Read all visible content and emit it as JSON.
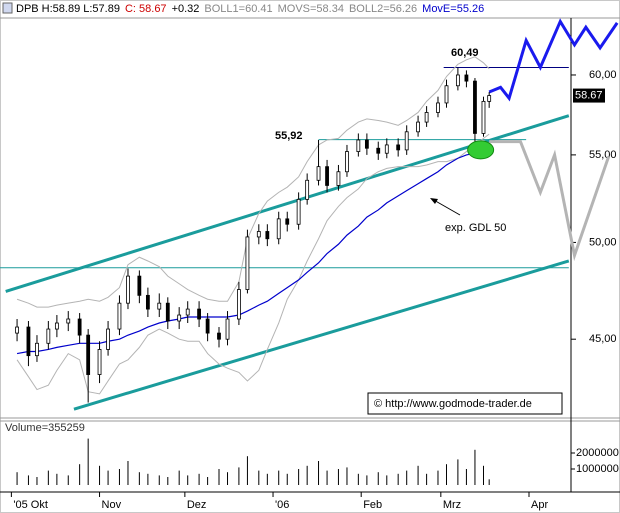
{
  "chart_data": [
    {
      "type": "candlestick",
      "header": [
        {
          "text": "DPB H:58.89 L:57.89",
          "color": "#000000"
        },
        {
          "text": "C: 58.67",
          "color": "#cc0000"
        },
        {
          "text": "+0.32",
          "color": "#000000"
        },
        {
          "text": "BOLL1=60.41",
          "color": "#888888"
        },
        {
          "text": "MOVS=58.34",
          "color": "#888888"
        },
        {
          "text": "BOLL2=56.26",
          "color": "#888888"
        },
        {
          "text": "MovE=55.26",
          "color": "#0000cc"
        }
      ],
      "x": [
        2,
        6,
        9,
        13,
        16,
        20,
        24,
        27,
        31,
        34,
        38,
        41,
        45,
        48,
        52,
        55,
        59,
        62,
        66,
        69,
        73,
        76,
        80,
        83,
        87,
        90,
        94,
        97,
        101,
        104,
        108,
        111,
        115,
        118,
        122,
        125,
        129,
        132,
        136,
        139,
        143,
        146,
        150,
        153,
        157,
        160,
        163,
        166,
        168
      ],
      "open": [
        45.3,
        45.6,
        44.2,
        44.8,
        45.5,
        45.8,
        46.0,
        45.2,
        43.3,
        44.5,
        45.5,
        46.8,
        48.2,
        47.2,
        46.5,
        46.8,
        45.9,
        46.2,
        46.5,
        46.0,
        45.3,
        45.0,
        46.0,
        47.5,
        50.3,
        50.6,
        50.2,
        51.3,
        51.0,
        52.4,
        53.5,
        54.3,
        53.2,
        54.0,
        55.2,
        55.9,
        55.4,
        55.1,
        55.6,
        55.3,
        56.4,
        57.0,
        57.6,
        58.2,
        59.3,
        60.0,
        59.6,
        56.3,
        58.3
      ],
      "high": [
        46.0,
        45.9,
        45.2,
        45.9,
        46.2,
        46.4,
        46.3,
        45.5,
        44.9,
        45.9,
        47.2,
        48.6,
        48.5,
        47.6,
        47.3,
        47.1,
        46.6,
        46.9,
        46.9,
        46.3,
        45.6,
        46.4,
        47.9,
        50.7,
        51.0,
        51.0,
        51.7,
        51.7,
        52.8,
        53.9,
        55.9,
        54.7,
        54.4,
        55.6,
        56.3,
        56.3,
        55.8,
        56.0,
        56.0,
        56.8,
        57.4,
        58.0,
        58.6,
        59.7,
        60.49,
        60.3,
        59.8,
        58.6,
        58.89
      ],
      "low": [
        44.9,
        43.7,
        43.9,
        44.5,
        45.1,
        45.4,
        44.8,
        42.0,
        42.9,
        44.2,
        45.2,
        46.5,
        46.8,
        46.1,
        46.1,
        45.5,
        45.5,
        45.8,
        45.6,
        44.9,
        44.6,
        44.7,
        45.7,
        47.3,
        49.9,
        49.8,
        49.9,
        50.6,
        50.7,
        52.1,
        53.2,
        52.8,
        52.9,
        53.7,
        54.9,
        55.0,
        54.7,
        54.8,
        54.9,
        55.0,
        56.1,
        56.7,
        57.3,
        57.9,
        59.0,
        59.2,
        55.8,
        56.1,
        57.89
      ],
      "close": [
        45.6,
        44.2,
        44.8,
        45.5,
        45.8,
        46.0,
        45.2,
        43.3,
        44.5,
        45.5,
        46.8,
        48.2,
        47.2,
        46.5,
        46.8,
        45.9,
        46.2,
        46.5,
        46.0,
        45.3,
        45.0,
        46.0,
        47.5,
        50.3,
        50.6,
        50.2,
        51.3,
        51.0,
        52.4,
        53.5,
        54.3,
        53.2,
        54.0,
        55.2,
        55.9,
        55.4,
        55.1,
        55.6,
        55.3,
        56.4,
        57.0,
        57.6,
        58.2,
        59.3,
        60.0,
        59.6,
        56.3,
        58.3,
        58.67
      ],
      "overlays": [
        {
          "color": "#b4b4b4",
          "values": [
            47.0,
            46.8,
            46.6,
            46.6,
            46.7,
            46.8,
            46.9,
            47.0,
            46.9,
            47.1,
            47.6,
            48.8,
            49.2,
            49.0,
            48.7,
            48.2,
            47.8,
            47.5,
            47.2,
            47.0,
            46.9,
            46.9,
            47.9,
            50.2,
            51.6,
            52.3,
            52.8,
            53.1,
            53.7,
            54.6,
            55.6,
            55.9,
            56.0,
            56.5,
            57.0,
            57.2,
            57.1,
            57.0,
            56.8,
            57.1,
            57.6,
            58.3,
            59.0,
            59.9,
            60.7,
            61.0,
            61.2,
            60.8,
            60.41
          ]
        },
        {
          "color": "#b4b4b4",
          "values": [
            44.0,
            43.2,
            42.6,
            42.8,
            43.5,
            44.3,
            44.0,
            42.5,
            42.4,
            43.0,
            43.8,
            44.0,
            44.6,
            45.2,
            45.5,
            45.3,
            45.0,
            44.9,
            44.9,
            44.3,
            43.8,
            43.6,
            43.4,
            43.0,
            43.5,
            44.5,
            45.8,
            47.0,
            48.0,
            49.0,
            50.2,
            51.2,
            52.0,
            52.5,
            53.0,
            53.6,
            54.0,
            54.2,
            54.3,
            54.3,
            54.3,
            54.4,
            54.6,
            54.6,
            54.8,
            55.2,
            55.6,
            56.0,
            56.26
          ]
        },
        {
          "color": "#0000cc",
          "values": [
            44.3,
            44.4,
            44.4,
            44.5,
            44.6,
            44.7,
            44.8,
            44.8,
            44.8,
            44.9,
            45.0,
            45.2,
            45.4,
            45.6,
            45.8,
            45.9,
            46.0,
            46.1,
            46.1,
            46.1,
            46.1,
            46.1,
            46.2,
            46.4,
            46.7,
            46.9,
            47.3,
            47.6,
            48.0,
            48.4,
            48.9,
            49.4,
            49.9,
            50.4,
            50.9,
            51.4,
            51.8,
            52.2,
            52.6,
            52.9,
            53.3,
            53.6,
            54.0,
            54.4,
            54.8,
            55.0,
            55.1,
            55.2,
            55.26
          ]
        }
      ],
      "lines": [
        {
          "color": "#1a9c9c",
          "width": 3,
          "x": [
            -2,
            196
          ],
          "values": [
            47.4,
            57.4
          ]
        },
        {
          "color": "#1a9c9c",
          "width": 3,
          "x": [
            22,
            196
          ],
          "values": [
            41.7,
            49.0
          ]
        },
        {
          "color": "#1a9c9c",
          "width": 1,
          "x": [
            -4,
            196
          ],
          "values": [
            48.64,
            48.64
          ]
        },
        {
          "color": "#1a9c9c",
          "width": 1,
          "x": [
            108,
            181
          ],
          "values": [
            55.92,
            55.92
          ]
        },
        {
          "color": "#000080",
          "width": 1,
          "x": [
            152,
            196
          ],
          "values": [
            60.49,
            60.49
          ]
        },
        {
          "color": "#1a1aee",
          "width": 3,
          "x": [
            168,
            172,
            175,
            181,
            186,
            193,
            198,
            202,
            207,
            213
          ],
          "values": [
            58.9,
            59.2,
            58.5,
            62.3,
            60.5,
            63.6,
            62.0,
            63.2,
            61.8,
            63.5
          ]
        },
        {
          "color": "#b4b4b4",
          "width": 3,
          "x": [
            168,
            179,
            186,
            191,
            198,
            210
          ],
          "values": [
            55.8,
            55.8,
            52.8,
            55.0,
            49.3,
            54.9
          ]
        }
      ],
      "highlight": {
        "x": 165,
        "value": 55.3,
        "color": "#33cc33"
      },
      "annotations": [
        "60,49",
        "55,92",
        "exp. GDL 50"
      ],
      "credit": "© http://www.godmode-trader.de",
      "last_price": 58.67,
      "log_scale": true,
      "xlim": [
        -4,
        214
      ],
      "ylim": [
        41.3,
        63.84
      ],
      "yticks": [
        {
          "value": 60,
          "label": "60,00"
        },
        {
          "value": 55,
          "label": "55,00"
        },
        {
          "value": 50,
          "label": "50,00"
        },
        {
          "value": 45,
          "label": "45,00"
        }
      ],
      "xticks": [
        {
          "value": 0,
          "label": "'05 Okt"
        },
        {
          "value": 31,
          "label": "Nov"
        },
        {
          "value": 61,
          "label": "Dez"
        },
        {
          "value": 92,
          "label": "'06"
        },
        {
          "value": 123,
          "label": "Feb"
        },
        {
          "value": 151,
          "label": "Mrz"
        },
        {
          "value": 182,
          "label": "Apr"
        }
      ]
    },
    {
      "type": "bar",
      "title": "Volume=355259",
      "color": "#000000",
      "x": [
        2,
        6,
        9,
        13,
        16,
        20,
        24,
        27,
        31,
        34,
        38,
        41,
        45,
        48,
        52,
        55,
        59,
        62,
        66,
        69,
        73,
        76,
        80,
        83,
        87,
        90,
        94,
        97,
        101,
        104,
        108,
        111,
        115,
        118,
        122,
        125,
        129,
        132,
        136,
        139,
        143,
        146,
        150,
        153,
        157,
        160,
        163,
        166,
        168
      ],
      "values": [
        800000,
        600000,
        500000,
        900000,
        700000,
        600000,
        1300000,
        2900000,
        1200000,
        900000,
        1000000,
        1500000,
        800000,
        700000,
        600000,
        500000,
        900000,
        600000,
        700000,
        500000,
        1000000,
        800000,
        1100000,
        1800000,
        900000,
        700000,
        900000,
        700000,
        1000000,
        1200000,
        1500000,
        900000,
        1000000,
        1100000,
        700000,
        600000,
        800000,
        600000,
        700000,
        900000,
        1200000,
        700000,
        900000,
        1300000,
        1600000,
        1000000,
        2200000,
        1200000,
        355259
      ],
      "xlim": [
        -4,
        214
      ],
      "ylim": [
        0,
        4000000
      ],
      "yticks": [
        2000000,
        1000000
      ]
    }
  ]
}
